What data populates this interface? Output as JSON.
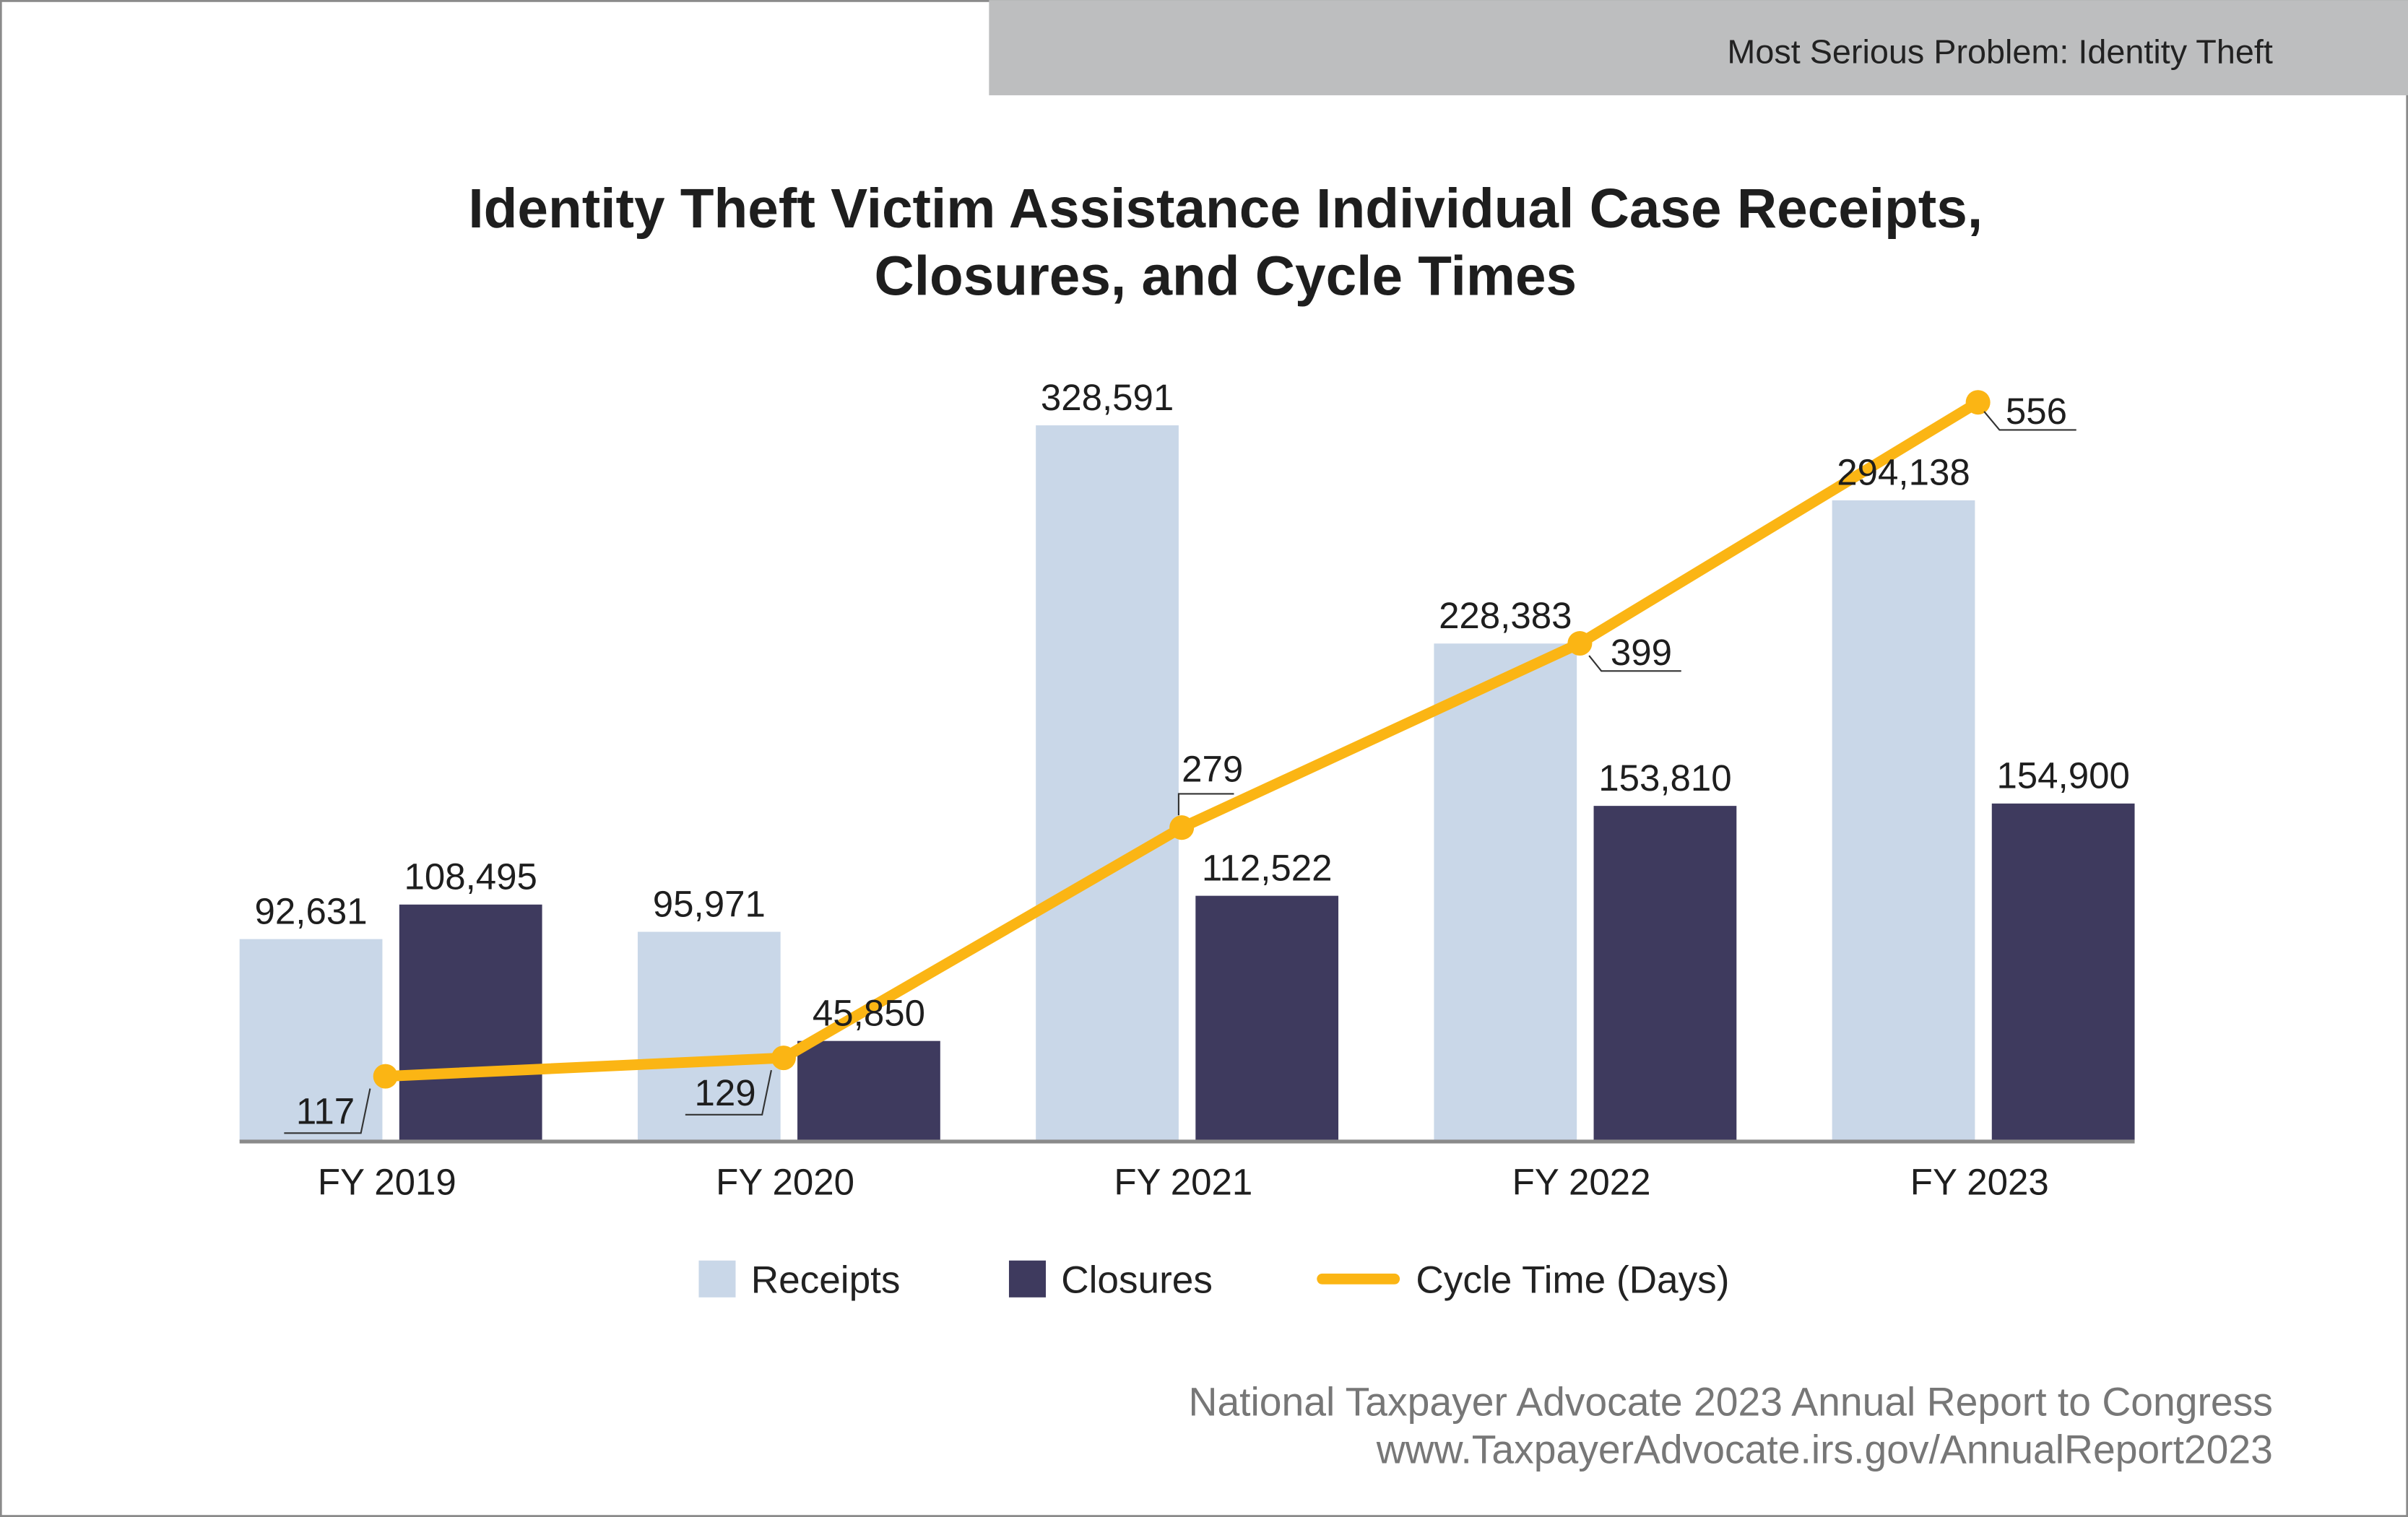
{
  "header": {
    "section_label": "Most Serious Problem: Identity Theft",
    "band_color": "#bdbebf"
  },
  "chart_data": {
    "type": "bar",
    "title_lines": [
      "Identity Theft Victim Assistance Individual Case Receipts,",
      "Closures, and Cycle Times"
    ],
    "categories": [
      "FY 2019",
      "FY 2020",
      "FY 2021",
      "FY 2022",
      "FY 2023"
    ],
    "series": [
      {
        "name": "Receipts",
        "kind": "bar",
        "color": "#c9d7e8",
        "values": [
          92631,
          95971,
          328591,
          228383,
          294138
        ],
        "labels": [
          "92,631",
          "95,971",
          "328,591",
          "228,383",
          "294,138"
        ]
      },
      {
        "name": "Closures",
        "kind": "bar",
        "color": "#3e3a5e",
        "values": [
          108495,
          45850,
          112522,
          153810,
          154900
        ],
        "labels": [
          "108,495",
          "45,850",
          "112,522",
          "153,810",
          "154,900"
        ]
      },
      {
        "name": "Cycle Time (Days)",
        "kind": "line",
        "color": "#fbb514",
        "values": [
          117,
          129,
          279,
          399,
          556
        ],
        "labels": [
          "117",
          "129",
          "279",
          "399",
          "556"
        ]
      }
    ],
    "legend_position": "bottom",
    "grid": false,
    "y_axis_visible": false
  },
  "footer": {
    "source_line1": "National Taxpayer Advocate 2023 Annual Report to Congress",
    "source_line2": "www.TaxpayerAdvocate.irs.gov/AnnualReport2023"
  }
}
